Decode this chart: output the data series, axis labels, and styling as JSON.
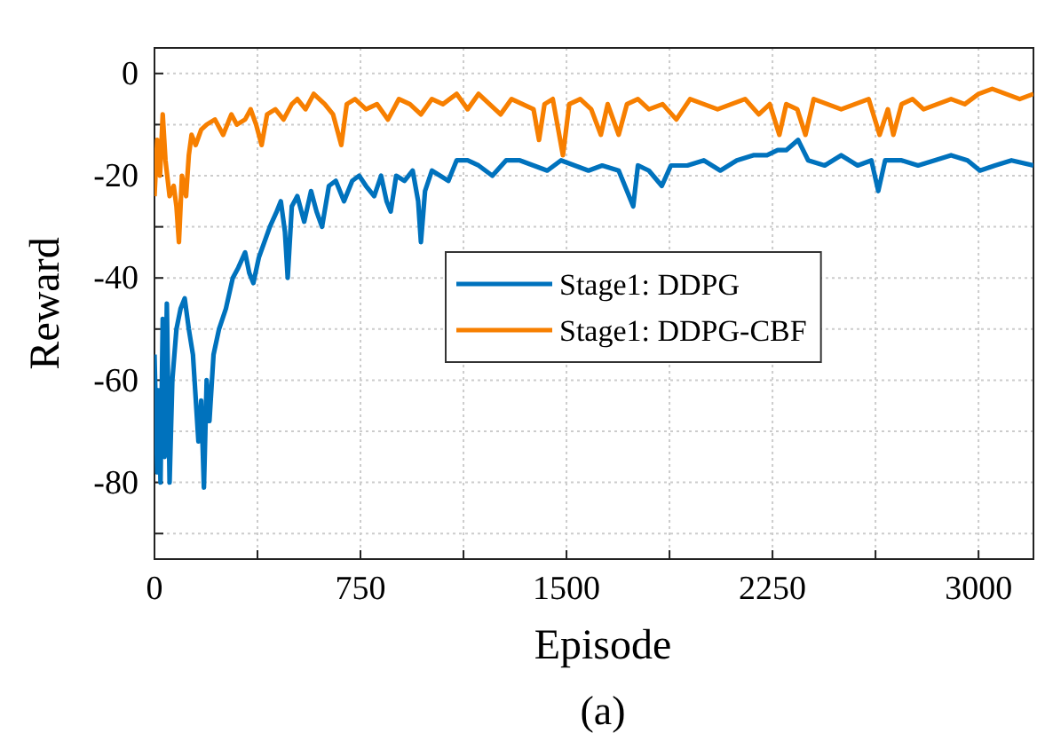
{
  "chart_data": {
    "type": "line",
    "xlabel": "Episode",
    "ylabel": "Reward",
    "annotations": [
      "(a)"
    ],
    "xlim": [
      0,
      3200
    ],
    "ylim": [
      -95,
      5
    ],
    "xticks": [
      0,
      {
        "value": 375,
        "label": null
      },
      750,
      {
        "value": 1125,
        "label": null
      },
      1500,
      {
        "value": 1875,
        "label": null
      },
      2250,
      {
        "value": 2625,
        "label": null
      },
      3000
    ],
    "yticks": [
      {
        "value": -90,
        "label": null
      },
      -80,
      {
        "value": -70,
        "label": null
      },
      -60,
      {
        "value": -50,
        "label": null
      },
      -40,
      {
        "value": -30,
        "label": null
      },
      -20,
      {
        "value": -10,
        "label": null
      },
      0
    ],
    "grid": true,
    "legend": "right",
    "line_style": "solid",
    "marker": "none",
    "series": [
      {
        "name": "Stage1: DDPG",
        "color": "#0072bd",
        "x": [
          0,
          10,
          15,
          22,
          30,
          37,
          45,
          55,
          65,
          80,
          95,
          110,
          125,
          140,
          160,
          170,
          180,
          190,
          200,
          215,
          235,
          260,
          285,
          305,
          330,
          345,
          360,
          380,
          400,
          420,
          445,
          460,
          475,
          485,
          500,
          520,
          545,
          570,
          590,
          610,
          635,
          660,
          690,
          720,
          745,
          770,
          800,
          825,
          845,
          860,
          880,
          910,
          940,
          960,
          970,
          985,
          1010,
          1040,
          1070,
          1100,
          1140,
          1180,
          1230,
          1280,
          1330,
          1380,
          1430,
          1480,
          1530,
          1580,
          1630,
          1690,
          1743,
          1760,
          1800,
          1847,
          1880,
          1940,
          2000,
          2060,
          2120,
          2180,
          2230,
          2269,
          2300,
          2343,
          2380,
          2440,
          2500,
          2560,
          2610,
          2635,
          2660,
          2720,
          2780,
          2840,
          2900,
          2960,
          3005,
          3060,
          3120,
          3200
        ],
        "values": [
          -55,
          -78,
          -62,
          -80,
          -48,
          -75,
          -45,
          -80,
          -60,
          -50,
          -46,
          -44,
          -50,
          -55,
          -72,
          -64,
          -81,
          -60,
          -68,
          -55,
          -50,
          -46,
          -40,
          -38,
          -35,
          -39,
          -41,
          -36,
          -33,
          -30,
          -27,
          -25,
          -31,
          -40,
          -26,
          -24,
          -29,
          -23,
          -27,
          -30,
          -22,
          -21,
          -25,
          -21,
          -20,
          -22,
          -24,
          -20,
          -25,
          -27,
          -20,
          -21,
          -19,
          -25,
          -33,
          -23,
          -19,
          -20,
          -21,
          -17,
          -17,
          -18,
          -20,
          -17,
          -17,
          -18,
          -19,
          -17,
          -18,
          -19,
          -18,
          -19,
          -26,
          -18,
          -19,
          -22,
          -18,
          -18,
          -17,
          -19,
          -17,
          -16,
          -16,
          -15,
          -15,
          -13,
          -17,
          -18,
          -16,
          -18,
          -17,
          -23,
          -17,
          -17,
          -18,
          -17,
          -16,
          -17,
          -19,
          -18,
          -17,
          -18
        ]
      },
      {
        "name": "Stage1: DDPG-CBF",
        "color": "#f77f00",
        "x": [
          0,
          10,
          20,
          30,
          40,
          55,
          70,
          80,
          89,
          100,
          115,
          125,
          135,
          150,
          170,
          190,
          220,
          250,
          280,
          300,
          330,
          350,
          370,
          390,
          410,
          440,
          470,
          500,
          520,
          550,
          580,
          620,
          650,
          680,
          700,
          730,
          770,
          810,
          850,
          890,
          930,
          970,
          1010,
          1050,
          1100,
          1140,
          1180,
          1220,
          1260,
          1300,
          1340,
          1380,
          1400,
          1420,
          1450,
          1487,
          1510,
          1550,
          1590,
          1625,
          1650,
          1690,
          1720,
          1760,
          1800,
          1850,
          1900,
          1950,
          2000,
          2050,
          2100,
          2150,
          2200,
          2240,
          2275,
          2300,
          2340,
          2370,
          2400,
          2450,
          2500,
          2550,
          2600,
          2640,
          2670,
          2690,
          2720,
          2760,
          2800,
          2850,
          2900,
          2950,
          3000,
          3050,
          3100,
          3150,
          3200
        ],
        "values": [
          -24,
          -13,
          -20,
          -8,
          -17,
          -24,
          -22,
          -26,
          -33,
          -20,
          -24,
          -16,
          -12,
          -14,
          -11,
          -10,
          -9,
          -12,
          -8,
          -10,
          -9,
          -7,
          -10,
          -14,
          -8,
          -7,
          -9,
          -6,
          -5,
          -7,
          -4,
          -6,
          -8,
          -14,
          -6,
          -5,
          -7,
          -6,
          -9,
          -5,
          -6,
          -8,
          -5,
          -6,
          -4,
          -7,
          -4,
          -6,
          -8,
          -5,
          -6,
          -7,
          -13,
          -6,
          -5,
          -16,
          -6,
          -5,
          -7,
          -12,
          -6,
          -12,
          -6,
          -5,
          -7,
          -6,
          -9,
          -5,
          -6,
          -7,
          -6,
          -5,
          -8,
          -6,
          -12,
          -6,
          -7,
          -12,
          -5,
          -6,
          -7,
          -6,
          -5,
          -12,
          -7,
          -12,
          -6,
          -5,
          -7,
          -6,
          -5,
          -6,
          -4,
          -3,
          -4,
          -5,
          -4
        ]
      }
    ]
  }
}
